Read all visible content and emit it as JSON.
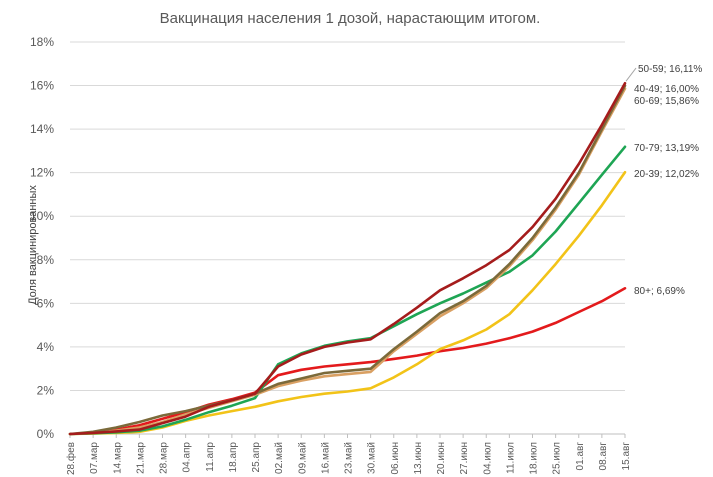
{
  "chart_data": {
    "type": "line",
    "title": "Вакцинация населения 1 дозой, нарастающим итогом.",
    "ylabel": "Доля вакцинированных",
    "xlabel": "",
    "ylim": [
      0,
      18
    ],
    "yticks": [
      "0%",
      "2%",
      "4%",
      "6%",
      "8%",
      "10%",
      "12%",
      "14%",
      "16%",
      "18%"
    ],
    "grid": true,
    "legend": "none",
    "categories": [
      "28.фев",
      "07.мар",
      "14.мар",
      "21.мар",
      "28.мар",
      "04.апр",
      "11.апр",
      "18.апр",
      "25.апр",
      "02.май",
      "09.май",
      "16.май",
      "23.май",
      "30.май",
      "06.июн",
      "13.июн",
      "20.июн",
      "27.июн",
      "04.июл",
      "11.июл",
      "18.июл",
      "25.июл",
      "01.авг",
      "08.авг",
      "15.авг"
    ],
    "series": [
      {
        "name": "80+",
        "label": "80+; 6,69%",
        "color": "#e31a1c",
        "values": [
          0,
          0.05,
          0.2,
          0.4,
          0.7,
          1.0,
          1.35,
          1.6,
          1.9,
          2.7,
          2.95,
          3.1,
          3.2,
          3.3,
          3.45,
          3.6,
          3.8,
          3.95,
          4.15,
          4.4,
          4.7,
          5.1,
          5.6,
          6.1,
          6.69
        ]
      },
      {
        "name": "20-39",
        "label": "20-39; 12,02%",
        "color": "#f2c318",
        "values": [
          0,
          0.02,
          0.05,
          0.1,
          0.3,
          0.6,
          0.85,
          1.05,
          1.25,
          1.5,
          1.7,
          1.85,
          1.95,
          2.1,
          2.6,
          3.2,
          3.9,
          4.3,
          4.8,
          5.5,
          6.6,
          7.8,
          9.1,
          10.5,
          12.02
        ]
      },
      {
        "name": "70-79",
        "label": "70-79; 13,19%",
        "color": "#1ea554",
        "values": [
          0,
          0.03,
          0.08,
          0.15,
          0.35,
          0.65,
          1.0,
          1.3,
          1.65,
          3.2,
          3.7,
          4.05,
          4.25,
          4.4,
          4.95,
          5.5,
          6.0,
          6.45,
          6.95,
          7.45,
          8.2,
          9.3,
          10.6,
          11.9,
          13.19
        ]
      },
      {
        "name": "60-69",
        "label": "60-69; 15,86%",
        "color": "#d9a063",
        "values": [
          0,
          0.05,
          0.15,
          0.3,
          0.55,
          0.9,
          1.2,
          1.5,
          1.8,
          2.2,
          2.45,
          2.65,
          2.75,
          2.85,
          3.8,
          4.6,
          5.4,
          6.0,
          6.7,
          7.7,
          8.9,
          10.3,
          11.9,
          13.9,
          15.86
        ]
      },
      {
        "name": "40-49",
        "label": "40-49; 16,00%",
        "color": "#7b6a3a",
        "values": [
          0,
          0.1,
          0.3,
          0.55,
          0.85,
          1.05,
          1.3,
          1.55,
          1.85,
          2.3,
          2.55,
          2.8,
          2.9,
          3.0,
          3.9,
          4.7,
          5.55,
          6.1,
          6.8,
          7.8,
          9.0,
          10.4,
          12.0,
          14.0,
          16.0
        ]
      },
      {
        "name": "50-59",
        "label": "50-59; 16,11%",
        "color": "#a51c1c",
        "values": [
          0,
          0.05,
          0.12,
          0.2,
          0.5,
          0.8,
          1.25,
          1.55,
          1.85,
          3.1,
          3.65,
          4.0,
          4.2,
          4.35,
          5.05,
          5.8,
          6.6,
          7.15,
          7.75,
          8.45,
          9.5,
          10.8,
          12.4,
          14.2,
          16.11
        ]
      }
    ]
  }
}
